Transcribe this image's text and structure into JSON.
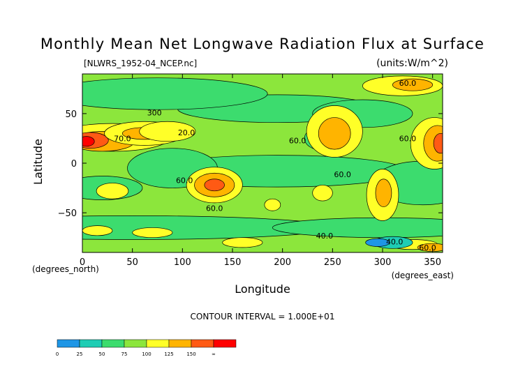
{
  "chart_data": {
    "type": "heatmap",
    "title": "Monthly Mean Net Longwave Radiation Flux at Surface",
    "file_label": "[NLWRS_1952-04_NCEP.nc]",
    "units_label": "(units:W/m^2)",
    "xlabel": "Longitude",
    "ylabel": "Latitude",
    "x_unit_label": "(degrees_east)",
    "y_unit_label": "(degrees_north)",
    "xlim": [
      0,
      360
    ],
    "ylim": [
      -90,
      90
    ],
    "x_ticks": [
      0,
      50,
      100,
      150,
      200,
      250,
      300,
      350
    ],
    "x_tick_labels": [
      "0",
      "50",
      "100",
      "150",
      "200",
      "250",
      "300",
      "350"
    ],
    "y_ticks": [
      50,
      0,
      -50
    ],
    "y_tick_labels": [
      "50",
      "0",
      "−50"
    ],
    "contour_interval_text": "CONTOUR INTERVAL = 1.000E+01",
    "contour_labels": [
      {
        "text": "60.0",
        "lon": 325,
        "lat": 78
      },
      {
        "text": "60.0",
        "lon": 215,
        "lat": 20
      },
      {
        "text": "60.0",
        "lon": 325,
        "lat": 22
      },
      {
        "text": "60.0",
        "lon": 260,
        "lat": -14
      },
      {
        "text": "60.0",
        "lon": 102,
        "lat": -20
      },
      {
        "text": "60.0",
        "lon": 132,
        "lat": -48
      },
      {
        "text": "60.0",
        "lon": 345,
        "lat": -88
      },
      {
        "text": "40.0",
        "lon": 242,
        "lat": -76
      },
      {
        "text": "40.0",
        "lon": 312,
        "lat": -82
      },
      {
        "text": "300",
        "lon": 72,
        "lat": 48
      },
      {
        "text": "70.0",
        "lon": 40,
        "lat": 22
      },
      {
        "text": "20.0",
        "lon": 104,
        "lat": 28
      }
    ],
    "colorbar": {
      "boundaries": [
        "0",
        "25",
        "50",
        "75",
        "100",
        "125",
        "150",
        "∞"
      ],
      "colors": [
        "#1e96e6",
        "#1ecdb4",
        "#3cdc6e",
        "#8ce63c",
        "#ffff28",
        "#ffb400",
        "#ff5a14",
        "#ff0000"
      ]
    }
  }
}
